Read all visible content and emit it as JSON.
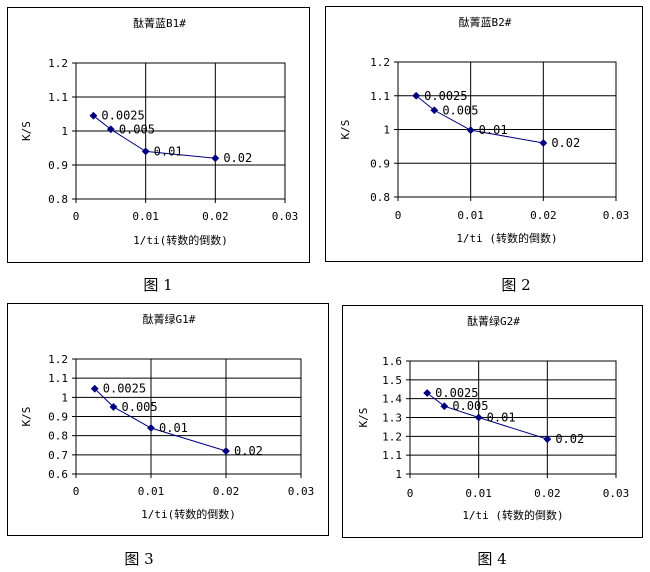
{
  "captions": [
    "图 1",
    "图 2",
    "图 3",
    "图 4"
  ],
  "chart_data": [
    {
      "type": "line",
      "title": "酞菁蓝B1#",
      "xlabel": "1/ti(转数的倒数)",
      "ylabel": "K/S",
      "xlim": [
        0,
        0.03
      ],
      "ylim": [
        0.8,
        1.2
      ],
      "xticks": [
        "0",
        "0.01",
        "0.02",
        "0.03"
      ],
      "yticks": [
        "0.8",
        "0.9",
        "1",
        "1.1",
        "1.2"
      ],
      "grid": true,
      "x": [
        0.0025,
        0.005,
        0.01,
        0.02
      ],
      "y": [
        1.045,
        1.005,
        0.94,
        0.92
      ],
      "point_labels": [
        "0.0025",
        "0.005",
        "0.01",
        "0.02"
      ],
      "line_color": "#000080"
    },
    {
      "type": "line",
      "title": "酞菁蓝B2#",
      "xlabel": "1/ti (转数的倒数)",
      "ylabel": "K/S",
      "xlim": [
        0,
        0.03
      ],
      "ylim": [
        0.8,
        1.2
      ],
      "xticks": [
        "0",
        "0.01",
        "0.02",
        "0.03"
      ],
      "yticks": [
        "0.8",
        "0.9",
        "1",
        "1.1",
        "1.2"
      ],
      "grid": true,
      "x": [
        0.0025,
        0.005,
        0.01,
        0.02
      ],
      "y": [
        1.1,
        1.057,
        0.998,
        0.96
      ],
      "point_labels": [
        "0.0025",
        "0.005",
        "0.01",
        "0.02"
      ],
      "line_color": "#000080"
    },
    {
      "type": "line",
      "title": "酞菁绿G1#",
      "xlabel": "1/ti(转数的倒数)",
      "ylabel": "K/S",
      "xlim": [
        0,
        0.03
      ],
      "ylim": [
        0.6,
        1.2
      ],
      "xticks": [
        "0",
        "0.01",
        "0.02",
        "0.03"
      ],
      "yticks": [
        "0.6",
        "0.7",
        "0.8",
        "0.9",
        "1",
        "1.1",
        "1.2"
      ],
      "grid": true,
      "x": [
        0.0025,
        0.005,
        0.01,
        0.02
      ],
      "y": [
        1.045,
        0.95,
        0.84,
        0.72
      ],
      "point_labels": [
        "0.0025",
        "0.005",
        "0.01",
        "0.02"
      ],
      "line_color": "#000080"
    },
    {
      "type": "line",
      "title": "酞菁绿G2#",
      "xlabel": "1/ti (转数的倒数)",
      "ylabel": "K/S",
      "xlim": [
        0,
        0.03
      ],
      "ylim": [
        1.0,
        1.6
      ],
      "xticks": [
        "0",
        "0.01",
        "0.02",
        "0.03"
      ],
      "yticks": [
        "1",
        "1.1",
        "1.2",
        "1.3",
        "1.4",
        "1.5",
        "1.6"
      ],
      "grid": true,
      "x": [
        0.0025,
        0.005,
        0.01,
        0.02
      ],
      "y": [
        1.43,
        1.36,
        1.3,
        1.185
      ],
      "point_labels": [
        "0.0025",
        "0.005",
        "0.01",
        "0.02"
      ],
      "line_color": "#000080"
    }
  ]
}
